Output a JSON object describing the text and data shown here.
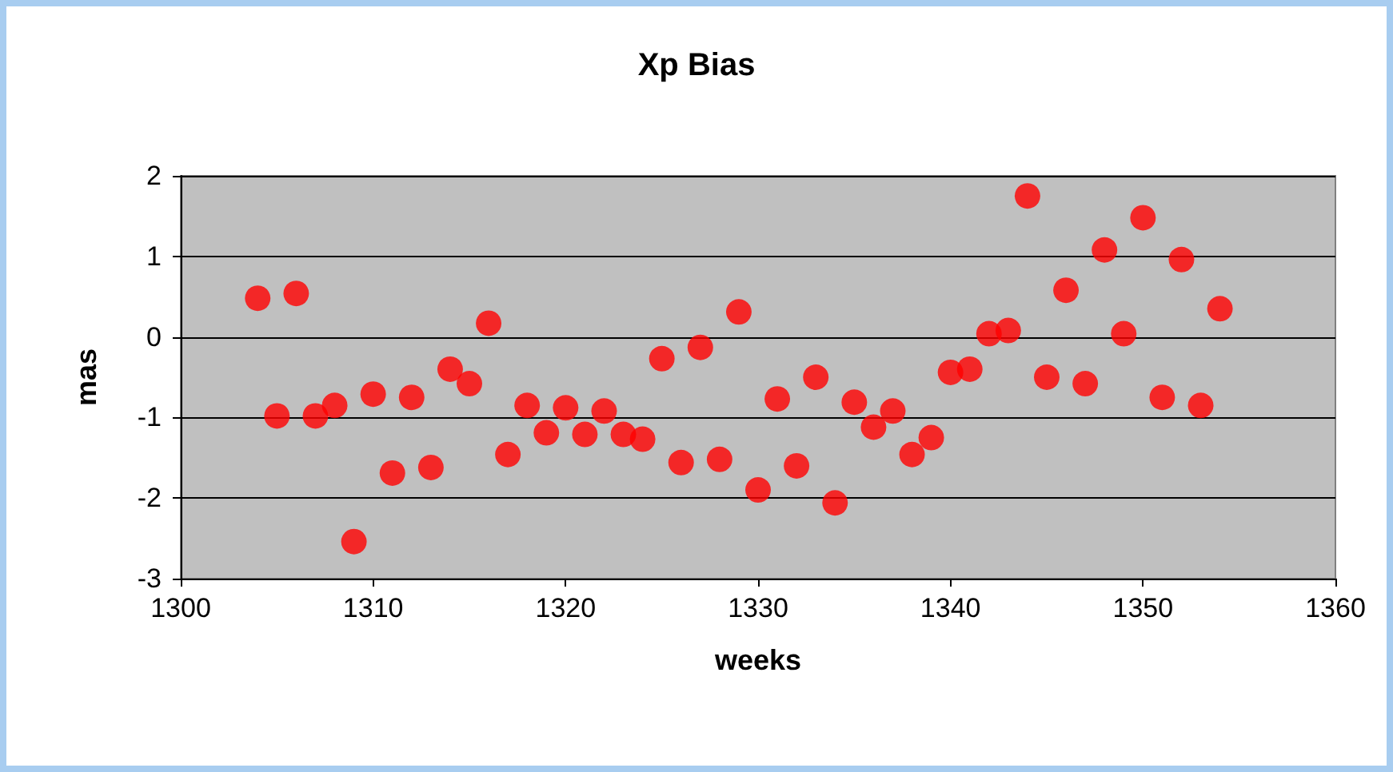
{
  "chart_data": {
    "type": "scatter",
    "title": "Xp Bias",
    "xlabel": "weeks",
    "ylabel": "mas",
    "x": [
      1304,
      1305,
      1306,
      1307,
      1308,
      1309,
      1310,
      1311,
      1312,
      1313,
      1314,
      1315,
      1316,
      1317,
      1318,
      1319,
      1320,
      1321,
      1322,
      1323,
      1324,
      1325,
      1326,
      1327,
      1328,
      1329,
      1330,
      1331,
      1332,
      1333,
      1334,
      1335,
      1336,
      1337,
      1338,
      1339,
      1340,
      1341,
      1342,
      1343,
      1344,
      1345,
      1346,
      1347,
      1348,
      1349,
      1350,
      1351,
      1352,
      1353,
      1354
    ],
    "series": [
      {
        "color": "#ff0000",
        "values": [
          0.48,
          -0.98,
          0.54,
          -0.98,
          -0.85,
          -2.54,
          -0.71,
          -1.69,
          -0.75,
          -1.62,
          -0.4,
          -0.58,
          0.17,
          -1.46,
          -0.85,
          -1.19,
          -0.88,
          -1.21,
          -0.92,
          -1.21,
          -1.27,
          -0.27,
          -1.56,
          -0.13,
          -1.52,
          0.31,
          -1.9,
          -0.77,
          -1.6,
          -0.5,
          -2.06,
          -0.81,
          -1.12,
          -0.92,
          -1.46,
          -1.25,
          -0.44,
          -0.4,
          0.04,
          0.08,
          1.75,
          -0.5,
          0.58,
          -0.58,
          1.08,
          0.04,
          1.48,
          -0.75,
          0.96,
          -0.85,
          0.35
        ]
      }
    ],
    "xlim": [
      1300,
      1360
    ],
    "xticks": [
      1300,
      1310,
      1320,
      1330,
      1340,
      1350,
      1360
    ],
    "ylim": [
      -3,
      2
    ],
    "yticks": [
      -3,
      -2,
      -1,
      0,
      1,
      2
    ],
    "grid": "y",
    "marker": "circle"
  }
}
